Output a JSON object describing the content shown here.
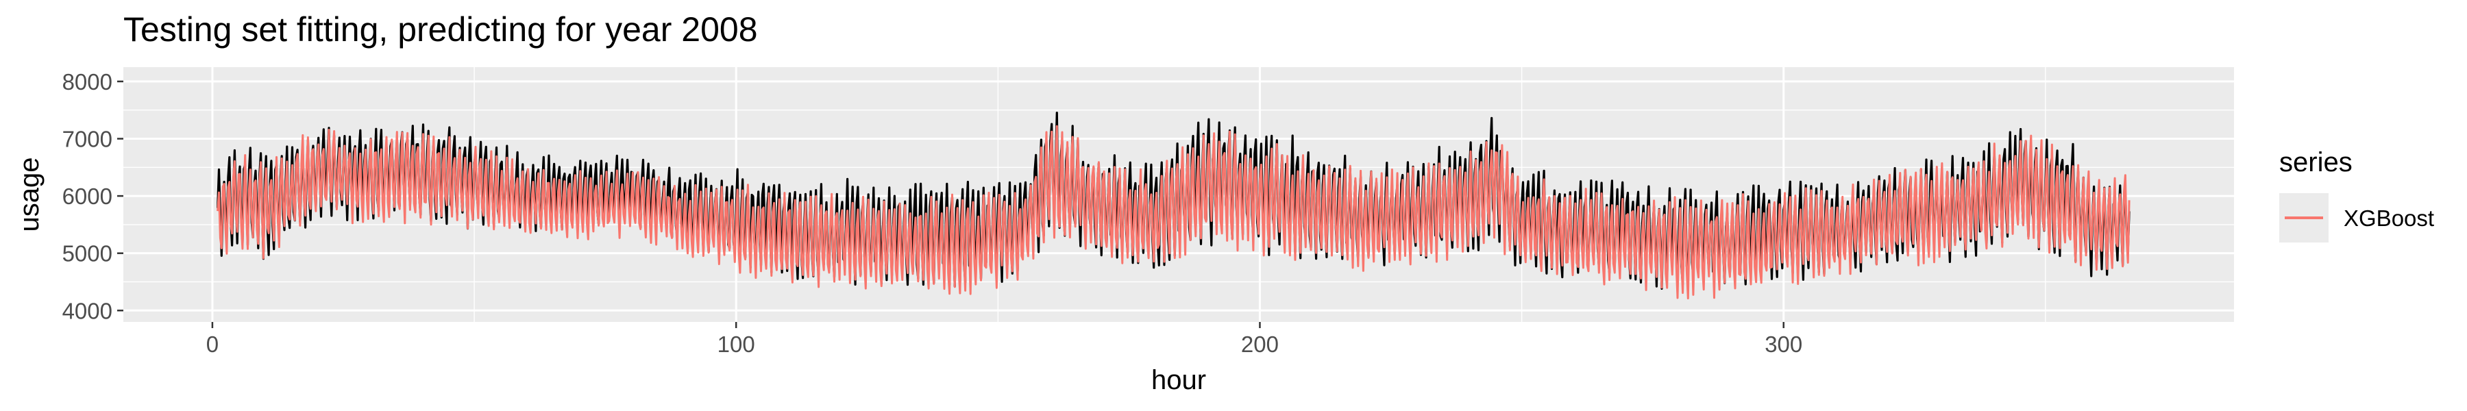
{
  "chart_data": {
    "type": "line",
    "title": "Testing set fitting, predicting for year 2008",
    "xlabel": "hour",
    "ylabel": "usage",
    "xlim": [
      -17,
      386
    ],
    "ylim": [
      3800,
      8250
    ],
    "x_ticks": [
      0,
      100,
      200,
      300
    ],
    "x_tick_labels": [
      "0",
      "100",
      "200",
      "300"
    ],
    "y_ticks": [
      4000,
      5000,
      6000,
      7000,
      8000
    ],
    "y_tick_labels": [
      "4000",
      "5000",
      "6000",
      "7000",
      "8000"
    ],
    "grid": true,
    "legend": {
      "title": "series",
      "position": "right"
    },
    "x_start": 1,
    "x_end": 366,
    "samples_per_unit": 4,
    "series": [
      {
        "role": "actual",
        "color": "#000000",
        "anchors_x": [
          1,
          5,
          10,
          20,
          30,
          40,
          50,
          60,
          70,
          80,
          90,
          100,
          110,
          120,
          130,
          140,
          150,
          155,
          160,
          165,
          170,
          180,
          190,
          200,
          210,
          220,
          230,
          240,
          245,
          250,
          255,
          260,
          270,
          280,
          290,
          300,
          310,
          320,
          330,
          340,
          345,
          350,
          355,
          360,
          366
        ],
        "anchors_center": [
          5700,
          6050,
          5800,
          6450,
          6400,
          6450,
          6250,
          6050,
          6050,
          6100,
          5750,
          5600,
          5400,
          5350,
          5300,
          5300,
          5350,
          5500,
          6400,
          6150,
          5850,
          5650,
          6300,
          6100,
          5900,
          5650,
          5750,
          6000,
          6350,
          5550,
          5500,
          5350,
          5400,
          5250,
          5200,
          5400,
          5400,
          5650,
          5750,
          6000,
          6250,
          6050,
          5900,
          5400,
          5500
        ],
        "anchors_amplitude": [
          900,
          1050,
          1050,
          1000,
          950,
          1050,
          950,
          800,
          700,
          700,
          750,
          1000,
          1050,
          1100,
          1050,
          1100,
          1050,
          1000,
          1350,
          1200,
          1100,
          1100,
          1300,
          1250,
          1200,
          1050,
          1100,
          1200,
          1300,
          1050,
          1050,
          1050,
          1000,
          1050,
          1100,
          1050,
          900,
          1000,
          1050,
          1150,
          1200,
          1200,
          1200,
          1000,
          1000
        ]
      },
      {
        "name": "XGBoost",
        "color": "#F8766D",
        "anchors_x": [
          1,
          5,
          10,
          20,
          30,
          40,
          50,
          60,
          70,
          80,
          90,
          100,
          110,
          120,
          130,
          140,
          150,
          155,
          160,
          165,
          170,
          180,
          190,
          200,
          210,
          220,
          230,
          240,
          245,
          250,
          255,
          260,
          270,
          280,
          290,
          300,
          310,
          320,
          330,
          340,
          345,
          350,
          355,
          360,
          366
        ],
        "anchors_center": [
          5650,
          5950,
          5750,
          6400,
          6300,
          6350,
          6150,
          5900,
          5850,
          5900,
          5550,
          5450,
          5250,
          5200,
          5150,
          5150,
          5200,
          5350,
          6300,
          6050,
          5750,
          5550,
          6200,
          5950,
          5800,
          5550,
          5650,
          5900,
          6250,
          5450,
          5400,
          5250,
          5250,
          5100,
          5100,
          5300,
          5350,
          5600,
          5700,
          5950,
          6150,
          5950,
          5800,
          5500,
          5600
        ],
        "anchors_amplitude": [
          850,
          1000,
          1000,
          950,
          900,
          950,
          900,
          750,
          700,
          700,
          700,
          900,
          950,
          1000,
          1000,
          1000,
          1000,
          950,
          1250,
          1100,
          1050,
          1000,
          1200,
          1150,
          1100,
          1000,
          1000,
          1100,
          1200,
          1000,
          1000,
          1000,
          950,
          1000,
          1000,
          1000,
          850,
          950,
          1000,
          1100,
          1150,
          1150,
          1100,
          1000,
          1000
        ]
      }
    ]
  }
}
